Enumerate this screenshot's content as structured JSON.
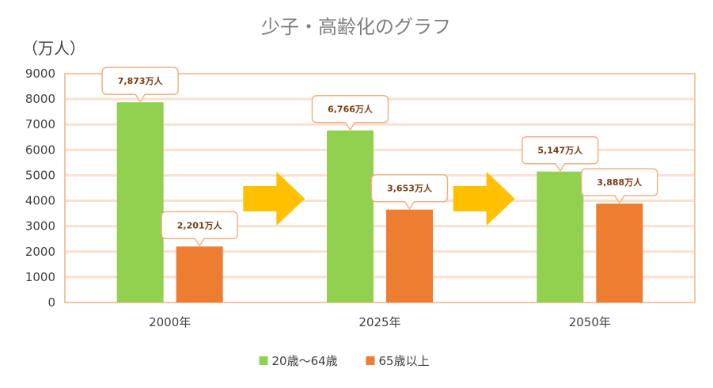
{
  "chart_data": {
    "type": "bar",
    "title": "少子・高齢化のグラフ",
    "ylabel": "（万人）",
    "ylim": [
      0,
      9000
    ],
    "yticks": [
      0,
      1000,
      2000,
      3000,
      4000,
      5000,
      6000,
      7000,
      8000,
      9000
    ],
    "categories": [
      "2000年",
      "2025年",
      "2050年"
    ],
    "series": [
      {
        "name": "20歳～64歳",
        "color": "#92d050",
        "values": [
          7873,
          6766,
          5147
        ],
        "labels": [
          "7,873万人",
          "6,766万人",
          "5,147万人"
        ]
      },
      {
        "name": "65歳以上",
        "color": "#ed7d31",
        "values": [
          2201,
          3653,
          3888
        ],
        "labels": [
          "2,201万人",
          "3,653万人",
          "3,888万人"
        ]
      }
    ],
    "grid": true,
    "legend_position": "bottom",
    "arrow_color": "#ffc000",
    "gridline_color": "#fbe0d0",
    "frame_color": "#f4b183"
  }
}
